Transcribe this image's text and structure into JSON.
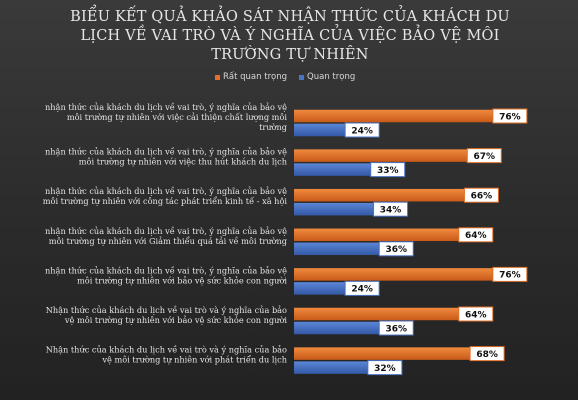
{
  "chart_data": {
    "type": "bar",
    "orientation": "horizontal",
    "title": "BIỂU KẾT QUẢ KHẢO SÁT NHẬN THỨC CỦA KHÁCH DU LỊCH VỀ VAI TRÒ VÀ Ý NGHĨA CỦA VIỆC BẢO VỆ MÔI TRƯỜNG TỰ NHIÊN",
    "title_lines": [
      "BIỂU KẾT QUẢ KHẢO SÁT NHẬN THỨC CỦA KHÁCH DU",
      "LỊCH VỀ VAI TRÒ VÀ Ý NGHĨA CỦA VIỆC BẢO VỆ MÔI",
      "TRƯỜNG TỰ NHIÊN"
    ],
    "legend_position": "top",
    "grid": false,
    "xlim": [
      0,
      100
    ],
    "categories": [
      [
        "nhận thức của khách du lịch về vai trò, ý nghĩa của bảo vệ",
        "môi trường tự nhiên với việc cải thiện chất lượng môi",
        "trường"
      ],
      [
        "nhận thức của khách du lịch về vai trò, ý nghĩa của bảo vệ",
        "môi trường tự nhiên với việc thu hút khách du lịch"
      ],
      [
        "nhận thức của khách du lịch về vai trò, ý nghĩa của bảo vệ",
        "môi trường tự nhiên với công tác phát triển kinh tế - xã hội"
      ],
      [
        "nhận thức của khách du lịch về vai trò, ý nghĩa của bảo vệ",
        "môi trường tự nhiên với Giảm thiểu quá tải về môi trường"
      ],
      [
        "nhận thức của khách du lịch về vai trò, ý nghĩa của bảo vệ",
        "môi trường tự nhiên với bảo vệ sức khỏe  con người"
      ],
      [
        "Nhận thức của khách du lịch về vai trò và ý nghĩa của bảo",
        "vệ môi trường tự nhiên với bảo vệ sức khỏe  con người"
      ],
      [
        "Nhận thức của khách du lịch về vai trò và ý nghĩa của bảo",
        "vệ môi trường tự nhiên với phát triển du lịch"
      ]
    ],
    "series": [
      {
        "name": "Rất quan trọng",
        "color": "#e0702a",
        "values": [
          76,
          67,
          66,
          64,
          76,
          64,
          68
        ],
        "labels": [
          "76%",
          "67%",
          "66%",
          "64%",
          "76%",
          "64%",
          "68%"
        ]
      },
      {
        "name": "Quan trọng",
        "color": "#4a74c4",
        "values": [
          24,
          33,
          34,
          36,
          24,
          36,
          32
        ],
        "labels": [
          "24%",
          "33%",
          "34%",
          "36%",
          "24%",
          "36%",
          "32%"
        ]
      }
    ]
  }
}
